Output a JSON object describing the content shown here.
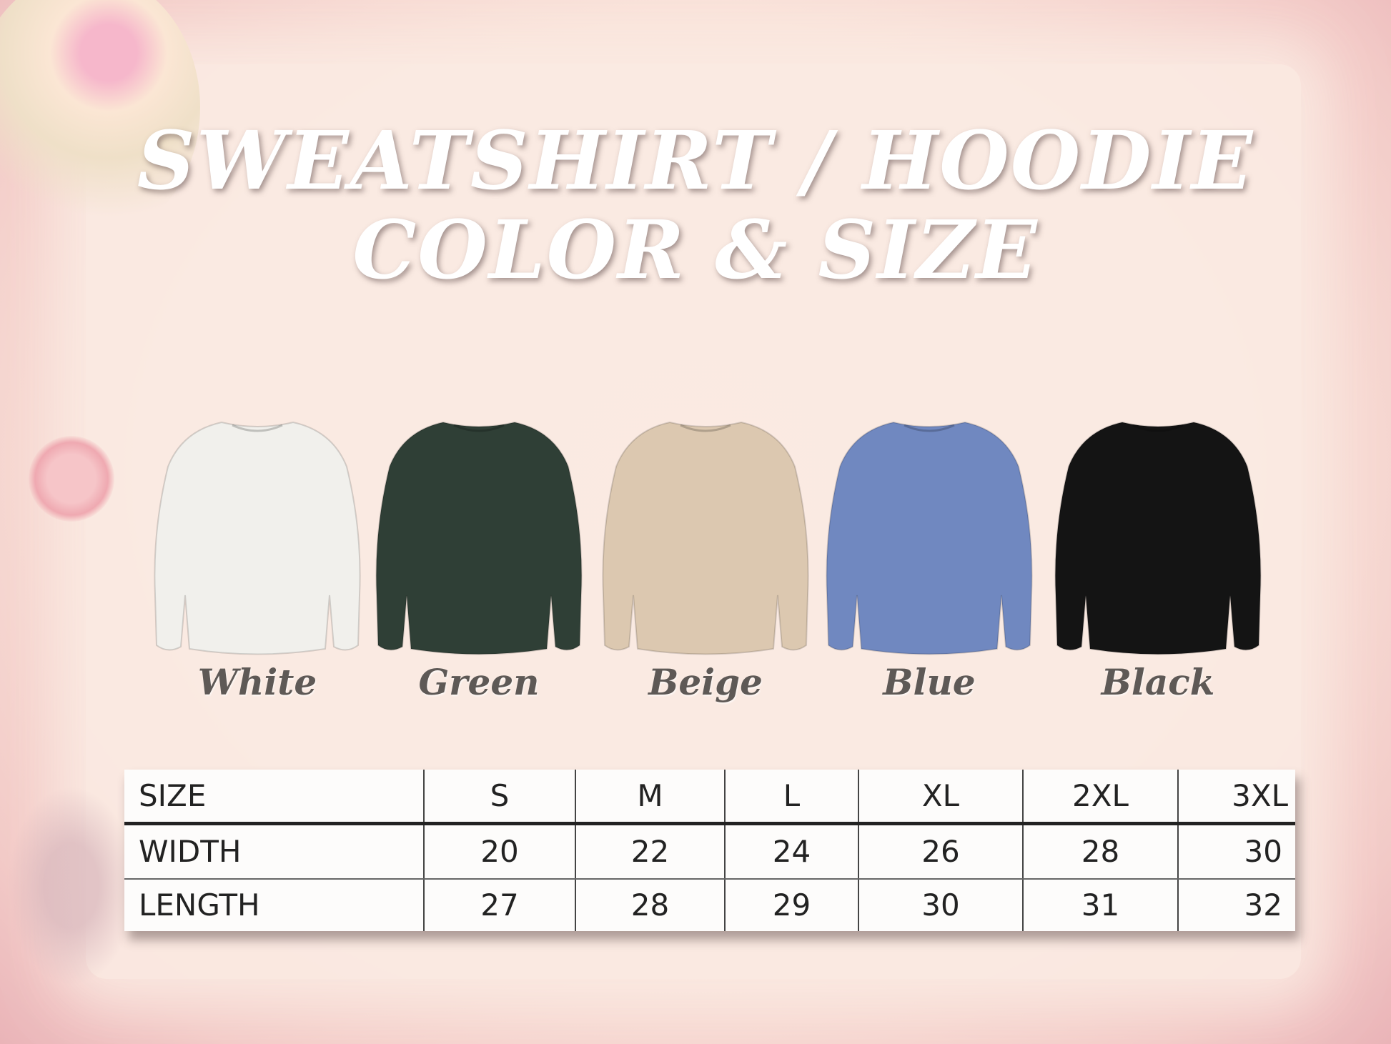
{
  "title": {
    "line1": "SWEATSHIRT / HOODIE",
    "line2": "COLOR & SIZE"
  },
  "colors": [
    {
      "label": "White",
      "hex": "#f1f0ec"
    },
    {
      "label": "Green",
      "hex": "#2f3f36"
    },
    {
      "label": "Beige",
      "hex": "#dcc8b0"
    },
    {
      "label": "Blue",
      "hex": "#7088c0"
    },
    {
      "label": "Black",
      "hex": "#141414"
    }
  ],
  "size_table": {
    "header": [
      "SIZE",
      "S",
      "M",
      "L",
      "XL",
      "2XL",
      "3XL"
    ],
    "rows": [
      [
        "WIDTH",
        "20",
        "22",
        "24",
        "26",
        "28",
        "30"
      ],
      [
        "LENGTH",
        "27",
        "28",
        "29",
        "30",
        "31",
        "32"
      ]
    ]
  }
}
